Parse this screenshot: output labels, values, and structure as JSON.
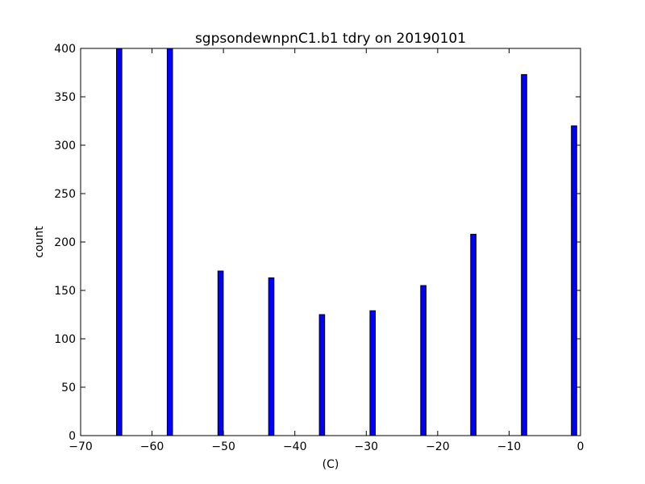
{
  "chart_data": {
    "type": "bar",
    "title": "sgpsondewnpnC1.b1 tdry on 20190101",
    "xlabel": "(C)",
    "ylabel": "count",
    "xlim": [
      -70,
      0
    ],
    "ylim": [
      0,
      400
    ],
    "x_ticks": [
      -70,
      -60,
      -50,
      -40,
      -30,
      -20,
      -10,
      0
    ],
    "x_tick_labels": [
      "−70",
      "−60",
      "−50",
      "−40",
      "−30",
      "−20",
      "−10",
      "0"
    ],
    "y_ticks": [
      0,
      50,
      100,
      150,
      200,
      250,
      300,
      350,
      400
    ],
    "y_tick_labels": [
      "0",
      "50",
      "100",
      "150",
      "200",
      "250",
      "300",
      "350",
      "400"
    ],
    "bar_width": 0.75,
    "bars": [
      {
        "x": -64.6,
        "value": 400
      },
      {
        "x": -57.5,
        "value": 400
      },
      {
        "x": -50.4,
        "value": 170
      },
      {
        "x": -43.3,
        "value": 163
      },
      {
        "x": -36.2,
        "value": 125
      },
      {
        "x": -29.1,
        "value": 129
      },
      {
        "x": -22.0,
        "value": 155
      },
      {
        "x": -15.0,
        "value": 208
      },
      {
        "x": -7.9,
        "value": 373
      },
      {
        "x": -0.9,
        "value": 320
      }
    ],
    "bar_color": "#0000ff",
    "grid": false
  }
}
